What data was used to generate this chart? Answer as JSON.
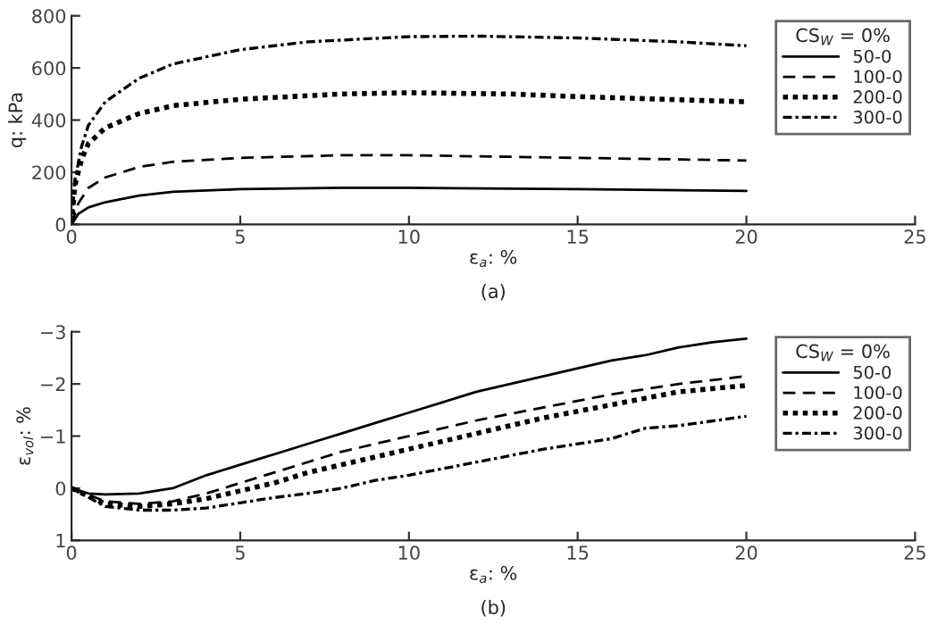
{
  "chart_data": [
    {
      "type": "line",
      "xlabel": "ε$_{a}$: %",
      "ylabel": "q: kPa",
      "legend_title": "CS$_{W}$ = 0%",
      "annotations": [
        "(a)"
      ],
      "xlim": [
        0,
        25
      ],
      "xticks": [
        0,
        5,
        10,
        15,
        20,
        25
      ],
      "ylim": [
        0,
        800
      ],
      "yticks": [
        0,
        200,
        400,
        600,
        800
      ],
      "grid": false,
      "legend": "upper right",
      "series": [
        {
          "name": "50-0",
          "color": "#000000",
          "line_style": "solid",
          "x": [
            0,
            0.2,
            0.5,
            1,
            2,
            3,
            5,
            8,
            10,
            15,
            20
          ],
          "values": [
            0,
            40,
            65,
            85,
            110,
            125,
            135,
            140,
            140,
            135,
            128
          ]
        },
        {
          "name": "100-0",
          "color": "#000000",
          "line_style": "dashed",
          "x": [
            0,
            0.2,
            0.5,
            1,
            2,
            3,
            5,
            8,
            10,
            15,
            20
          ],
          "values": [
            0,
            80,
            140,
            180,
            220,
            240,
            255,
            265,
            265,
            255,
            245
          ]
        },
        {
          "name": "200-0",
          "color": "#000000",
          "line_style": "dotted",
          "x": [
            0,
            0.1,
            0.3,
            0.5,
            1,
            2,
            3,
            5,
            8,
            10,
            13,
            15,
            20
          ],
          "values": [
            0,
            150,
            250,
            310,
            370,
            425,
            455,
            480,
            500,
            505,
            500,
            490,
            470
          ]
        },
        {
          "name": "300-0",
          "color": "#000000",
          "line_style": "dashdot",
          "x": [
            0,
            0.1,
            0.3,
            0.5,
            1,
            2,
            3,
            5,
            7,
            10,
            12,
            15,
            18,
            20
          ],
          "values": [
            0,
            170,
            300,
            380,
            470,
            560,
            615,
            670,
            700,
            720,
            722,
            715,
            700,
            685
          ]
        }
      ]
    },
    {
      "type": "line",
      "xlabel": "ε$_{a}$: %",
      "ylabel": "ε$_{vol}$: %",
      "legend_title": "CS$_{W}$ = 0%",
      "annotations": [
        "(b)"
      ],
      "xlim": [
        0,
        25
      ],
      "xticks": [
        0,
        5,
        10,
        15,
        20,
        25
      ],
      "ylim": [
        1,
        -3
      ],
      "yticks": [
        {
          "value": -3,
          "label": "−3"
        },
        {
          "value": -2,
          "label": "−2"
        },
        {
          "value": -1,
          "label": "−1"
        },
        0,
        1
      ],
      "grid": false,
      "legend": "upper right",
      "series": [
        {
          "name": "50-0",
          "color": "#000000",
          "line_style": "solid",
          "x": [
            0,
            0.5,
            1,
            2,
            3,
            4,
            5,
            6,
            7,
            8,
            9,
            10,
            11,
            12,
            13,
            14,
            15,
            16,
            17,
            18,
            19,
            20
          ],
          "values": [
            0,
            0.1,
            0.12,
            0.1,
            0,
            -0.25,
            -0.45,
            -0.65,
            -0.85,
            -1.05,
            -1.25,
            -1.45,
            -1.65,
            -1.85,
            -2.0,
            -2.15,
            -2.3,
            -2.45,
            -2.55,
            -2.7,
            -2.8,
            -2.87
          ]
        },
        {
          "name": "100-0",
          "color": "#000000",
          "line_style": "dashed",
          "x": [
            0,
            1,
            2,
            3,
            4,
            5,
            6,
            7,
            8,
            9,
            10,
            12,
            14,
            16,
            18,
            20
          ],
          "values": [
            0,
            0.25,
            0.3,
            0.25,
            0.1,
            -0.1,
            -0.3,
            -0.5,
            -0.7,
            -0.85,
            -1.0,
            -1.3,
            -1.55,
            -1.8,
            -2.0,
            -2.15
          ]
        },
        {
          "name": "200-0",
          "color": "#000000",
          "line_style": "dotted",
          "x": [
            0,
            1,
            2,
            3,
            4,
            5,
            6,
            7,
            8,
            9,
            10,
            12,
            14,
            16,
            18,
            20
          ],
          "values": [
            0,
            0.3,
            0.35,
            0.3,
            0.2,
            0.05,
            -0.1,
            -0.3,
            -0.45,
            -0.6,
            -0.75,
            -1.05,
            -1.35,
            -1.6,
            -1.85,
            -1.97
          ]
        },
        {
          "name": "300-0",
          "color": "#000000",
          "line_style": "dashdot",
          "x": [
            0,
            1,
            2,
            3,
            4,
            5,
            6,
            7,
            8,
            9,
            10,
            12,
            14,
            16,
            17,
            18,
            20
          ],
          "values": [
            0,
            0.35,
            0.42,
            0.42,
            0.38,
            0.28,
            0.18,
            0.1,
            0,
            -0.15,
            -0.25,
            -0.5,
            -0.75,
            -0.95,
            -1.15,
            -1.2,
            -1.38
          ]
        }
      ]
    }
  ]
}
